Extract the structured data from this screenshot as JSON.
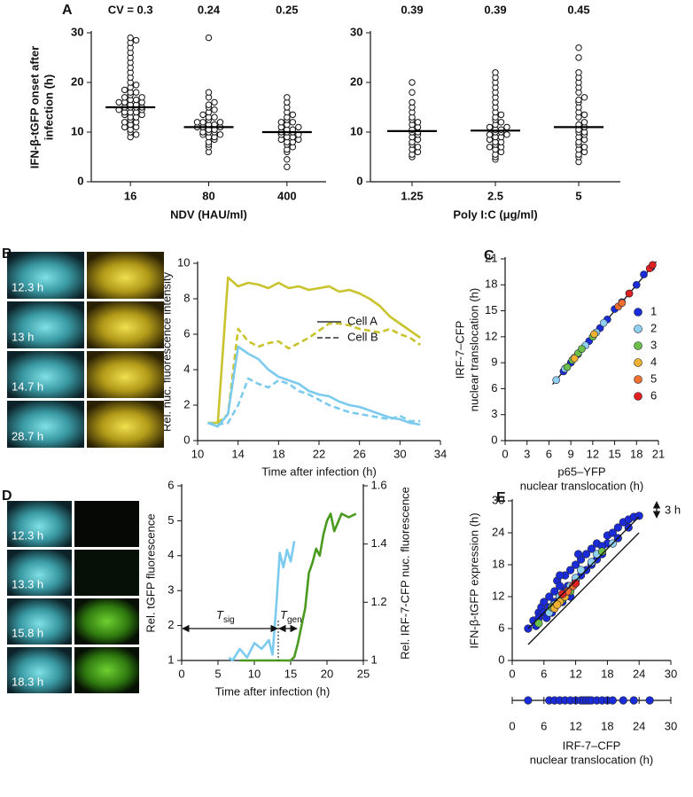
{
  "chart_data": [
    {
      "type": "dot",
      "panel": "A",
      "ylabel": [
        "IFN-β-tGFP onset after",
        "infection (h)"
      ],
      "xlabel": "NDV (HAU/ml)",
      "categories": [
        "16",
        "80",
        "400"
      ],
      "cv_labels": [
        "CV = 0.3",
        "0.24",
        "0.25"
      ],
      "values": [
        [
          9,
          9.5,
          10,
          10.5,
          11,
          11,
          11.5,
          12,
          12,
          12.5,
          13,
          13,
          13.5,
          13.5,
          14,
          14,
          14,
          14.5,
          14.5,
          15,
          15,
          15,
          15,
          15.5,
          15.5,
          16,
          16,
          16,
          16.5,
          16.5,
          17,
          17,
          17.5,
          18,
          18,
          18.5,
          19,
          19.5,
          20,
          21,
          22,
          23,
          24,
          25,
          26,
          27,
          28,
          28.5,
          29
        ],
        [
          6,
          7,
          7.5,
          8,
          8.5,
          9,
          9,
          9.5,
          9.5,
          10,
          10,
          10,
          10.5,
          10.5,
          11,
          11,
          11,
          11.5,
          11.5,
          12,
          12,
          12,
          12.5,
          13,
          13,
          13.5,
          14,
          14.5,
          15,
          15.5,
          16,
          17,
          18,
          29
        ],
        [
          3,
          4.5,
          6,
          6.5,
          7,
          7.5,
          8,
          8,
          8.5,
          8.5,
          9,
          9,
          9.5,
          9.5,
          10,
          10,
          10,
          10.5,
          10.5,
          11,
          11,
          11.5,
          12,
          12,
          12.5,
          13,
          13.5,
          14,
          15,
          16,
          17
        ]
      ],
      "means": [
        15,
        11,
        10
      ],
      "ylim": [
        0,
        30
      ],
      "yticks": [
        0,
        10,
        20,
        30
      ]
    },
    {
      "type": "dot",
      "xlabel": "Poly I:C (μg/ml)",
      "categories": [
        "1.25",
        "2.5",
        "5"
      ],
      "cv_labels": [
        "0.39",
        "0.39",
        "0.45"
      ],
      "values": [
        [
          5,
          5.5,
          6,
          6.5,
          7,
          7.5,
          8,
          8.5,
          9,
          9.5,
          10,
          10,
          10.5,
          11,
          11.5,
          12,
          12.5,
          13,
          14,
          15,
          16,
          18,
          20
        ],
        [
          4.5,
          5,
          5.5,
          6,
          6.5,
          7,
          7,
          7.5,
          8,
          8,
          8.5,
          9,
          9,
          9.5,
          9.5,
          10,
          10,
          10.5,
          10.5,
          11,
          11,
          11.5,
          12,
          12.5,
          13,
          13.5,
          14,
          15,
          16,
          17,
          18,
          19,
          20,
          21,
          22
        ],
        [
          4,
          5,
          5.5,
          6,
          6.5,
          7,
          7.5,
          8,
          8.5,
          9,
          9.5,
          10,
          10,
          10.5,
          11,
          11.5,
          12,
          13,
          13.5,
          14,
          15,
          16,
          16.5,
          17,
          18,
          19,
          20,
          21,
          22,
          25,
          27
        ]
      ],
      "means": [
        10.2,
        10.3,
        11
      ],
      "ylim": [
        0,
        30
      ],
      "yticks": [
        0,
        10,
        20,
        30
      ]
    },
    {
      "type": "line",
      "panel": "B",
      "image_labels": [
        "12.3 h",
        "13 h",
        "14.7 h",
        "28.7 h"
      ],
      "xlabel": "Time after infection (h)",
      "ylabel": "Rel. nuc. fluorescence intensity",
      "x": [
        11,
        12,
        13,
        14,
        15,
        16,
        17,
        18,
        19,
        20,
        21,
        22,
        23,
        24,
        25,
        26,
        27,
        28,
        29,
        30,
        31,
        32
      ],
      "series": [
        {
          "color": "#c9c42e",
          "dash": "solid",
          "values": [
            1,
            1,
            9.2,
            8.7,
            8.9,
            8.8,
            8.6,
            8.9,
            8.6,
            8.7,
            8.5,
            8.6,
            8.7,
            8.4,
            8.5,
            8.3,
            8,
            7.6,
            7,
            6.6,
            6.2,
            5.8
          ]
        },
        {
          "color": "#c9c42e",
          "dash": "dashed",
          "values": [
            1,
            1,
            1.5,
            6.3,
            5.6,
            5.3,
            5.5,
            5.6,
            5.2,
            5.5,
            5.8,
            6.2,
            6.6,
            6.6,
            6.5,
            6.3,
            6.2,
            6.1,
            6.3,
            6,
            5.8,
            5.4
          ]
        },
        {
          "color": "#7ccbef",
          "dash": "solid",
          "values": [
            1,
            0.8,
            1.5,
            5.3,
            4.9,
            4.6,
            4,
            3.6,
            3.4,
            3.2,
            2.8,
            2.6,
            2.5,
            2.2,
            2,
            1.9,
            1.7,
            1.5,
            1.3,
            1.2,
            1,
            0.9
          ]
        },
        {
          "color": "#7ccbef",
          "dash": "dashed",
          "values": [
            1,
            0.9,
            1,
            2,
            3.5,
            3.2,
            3,
            3.4,
            3.2,
            2.8,
            2.6,
            2.3,
            2,
            1.8,
            1.6,
            1.5,
            1.4,
            1.3,
            1.2,
            1.4,
            1.1,
            1.1
          ]
        }
      ],
      "legend": [
        {
          "name": "Cell A",
          "dash": "solid"
        },
        {
          "name": "Cell B",
          "dash": "dashed"
        }
      ],
      "xlim": [
        10,
        34
      ],
      "xticks": [
        10,
        14,
        18,
        22,
        26,
        30,
        34
      ],
      "ylim": [
        0,
        10
      ],
      "yticks": [
        0,
        2,
        4,
        6,
        8,
        10
      ]
    },
    {
      "type": "scatter",
      "panel": "C",
      "xlabel": [
        "p65–YFP",
        "nuclear translocation (h)"
      ],
      "ylabel": [
        "IRF-7–CFP",
        "nuclear translocation (h)"
      ],
      "series": [
        {
          "name": "1",
          "color": "#1a2bd8",
          "x": [
            8,
            9,
            10,
            11.5,
            13,
            14,
            15,
            16,
            17,
            18,
            19,
            20
          ],
          "values": [
            8,
            9,
            10,
            11.5,
            13,
            14,
            15.2,
            16,
            17,
            18,
            19.2,
            20
          ]
        },
        {
          "name": "2",
          "color": "#8fd0f0",
          "x": [
            7,
            8.2,
            9.5,
            11,
            12.5,
            13.5
          ],
          "values": [
            7,
            8.3,
            9.6,
            11,
            12.5,
            13.6
          ]
        },
        {
          "name": "3",
          "color": "#6cc04a",
          "x": [
            8.5,
            9.2,
            10,
            10.5,
            12
          ],
          "values": [
            8.5,
            9.3,
            10.1,
            10.6,
            12
          ]
        },
        {
          "name": "4",
          "color": "#f0b030",
          "x": [
            9.5,
            12.2
          ],
          "values": [
            9.5,
            12.3
          ]
        },
        {
          "name": "5",
          "color": "#f07030",
          "x": [
            15.5,
            16
          ],
          "values": [
            15.5,
            15.9
          ]
        },
        {
          "name": "6",
          "color": "#e02020",
          "x": [
            17,
            19.8,
            20.2
          ],
          "values": [
            17,
            19.9,
            20.3
          ]
        }
      ],
      "xlim": [
        0,
        21
      ],
      "xticks": [
        0,
        3,
        6,
        9,
        12,
        15,
        18,
        21
      ],
      "ylim": [
        0,
        21
      ],
      "yticks": [
        0,
        3,
        6,
        9,
        12,
        15,
        18,
        21
      ]
    },
    {
      "type": "line",
      "panel": "D",
      "image_labels": [
        "12.3 h",
        "13.3 h",
        "15.8 h",
        "18.3 h"
      ],
      "xlabel": "Time after infection (h)",
      "ylabel": "Rel. tGFP fluorescence",
      "y2label": "Rel. IRF-7-CFP nuc. fluorescence",
      "annotations": [
        {
          "text": "T",
          "sub": "sig"
        },
        {
          "text": "T",
          "sub": "gen"
        }
      ],
      "series": [
        {
          "color": "#7ccbef",
          "dash": "solid",
          "axis": "y2",
          "x": [
            6.5,
            7,
            8,
            9,
            10,
            11,
            12,
            12.5,
            13,
            13.5,
            14,
            14.5,
            15,
            15.5
          ],
          "values": [
            1.01,
            1,
            1.04,
            1.01,
            1.06,
            1.04,
            1.07,
            1.02,
            1.18,
            1.37,
            1.32,
            1.38,
            1.34,
            1.41
          ]
        },
        {
          "color": "#4a9a20",
          "dash": "solid",
          "x": [
            8,
            10,
            12,
            14,
            15,
            15.5,
            16,
            16.5,
            17,
            17.5,
            18,
            18.5,
            19,
            19.5,
            20,
            20.5,
            21,
            22,
            23,
            24
          ],
          "values": [
            1,
            1,
            1,
            1,
            1,
            1.1,
            1.5,
            2,
            2.5,
            3.5,
            3.8,
            4.2,
            4,
            4.6,
            5,
            5.2,
            4.7,
            5.2,
            5.1,
            5.2
          ]
        }
      ],
      "xlim": [
        0,
        25
      ],
      "xticks": [
        0,
        5,
        10,
        15,
        20,
        25
      ],
      "ylim": [
        1,
        6
      ],
      "yticks": [
        1,
        2,
        3,
        4,
        5,
        6
      ],
      "y2lim": [
        1,
        1.6
      ],
      "y2ticks": [
        1,
        1.2,
        1.4,
        1.6
      ]
    },
    {
      "type": "scatter",
      "panel": "E",
      "xlabel": [
        "IRF-7–CFP",
        "nuclear translocation (h)"
      ],
      "ylabel": "IFN-β-tGFP expression (h)",
      "annotation": "3 h",
      "series": [
        {
          "color": "#1a2bd8",
          "x": [
            3,
            4,
            4.5,
            5,
            5,
            5.5,
            6,
            6,
            6.5,
            7,
            7,
            7.5,
            8,
            8,
            8.5,
            9,
            9,
            9.5,
            10,
            10,
            10.5,
            11,
            11,
            12,
            12,
            13,
            13,
            14,
            14,
            15,
            15,
            16,
            16,
            17,
            18,
            18,
            19,
            20,
            20,
            21,
            22,
            23,
            24,
            22,
            17,
            12.5,
            9
          ],
          "values": [
            6,
            7.5,
            6.5,
            9,
            8,
            10,
            9,
            11,
            8,
            12,
            10,
            9,
            13,
            11,
            15,
            12,
            14,
            11,
            16,
            13,
            14,
            17,
            12,
            15,
            18,
            16,
            19,
            17,
            20,
            18,
            21,
            19,
            22,
            20,
            22,
            23.5,
            24,
            23,
            25,
            26,
            26.5,
            27,
            27.2,
            25,
            21.5,
            20,
            16
          ]
        },
        {
          "color": "#8fd0f0",
          "x": [
            7,
            8,
            9,
            10,
            11,
            12,
            13,
            15,
            16,
            19
          ],
          "values": [
            9,
            10.5,
            12,
            12.5,
            14,
            15.5,
            17,
            18.5,
            20,
            22
          ]
        },
        {
          "color": "#6cc04a",
          "x": [
            5,
            7.5,
            9.5,
            17,
            11
          ],
          "values": [
            7,
            10,
            11.5,
            20.5,
            13
          ]
        },
        {
          "color": "#f0b030",
          "x": [
            8,
            9,
            10,
            8.5
          ],
          "values": [
            9.8,
            11,
            12,
            10.5
          ]
        },
        {
          "color": "#f07030",
          "x": [
            11.5,
            10.5
          ],
          "values": [
            14,
            13
          ]
        },
        {
          "color": "#e02020",
          "x": [
            9.5,
            12
          ],
          "values": [
            12.5,
            14.5
          ]
        }
      ],
      "strip": {
        "color": "#1a2bd8",
        "values": [
          3,
          7,
          8,
          9,
          10,
          11,
          12,
          13,
          13.5,
          14,
          14.5,
          15,
          16,
          17,
          18,
          19,
          21,
          23,
          26
        ]
      },
      "xlim": [
        0,
        30
      ],
      "xticks": [
        0,
        6,
        12,
        18,
        24,
        30
      ],
      "ylim": [
        0,
        30
      ],
      "yticks": [
        0,
        6,
        12,
        18,
        24,
        30
      ]
    }
  ]
}
